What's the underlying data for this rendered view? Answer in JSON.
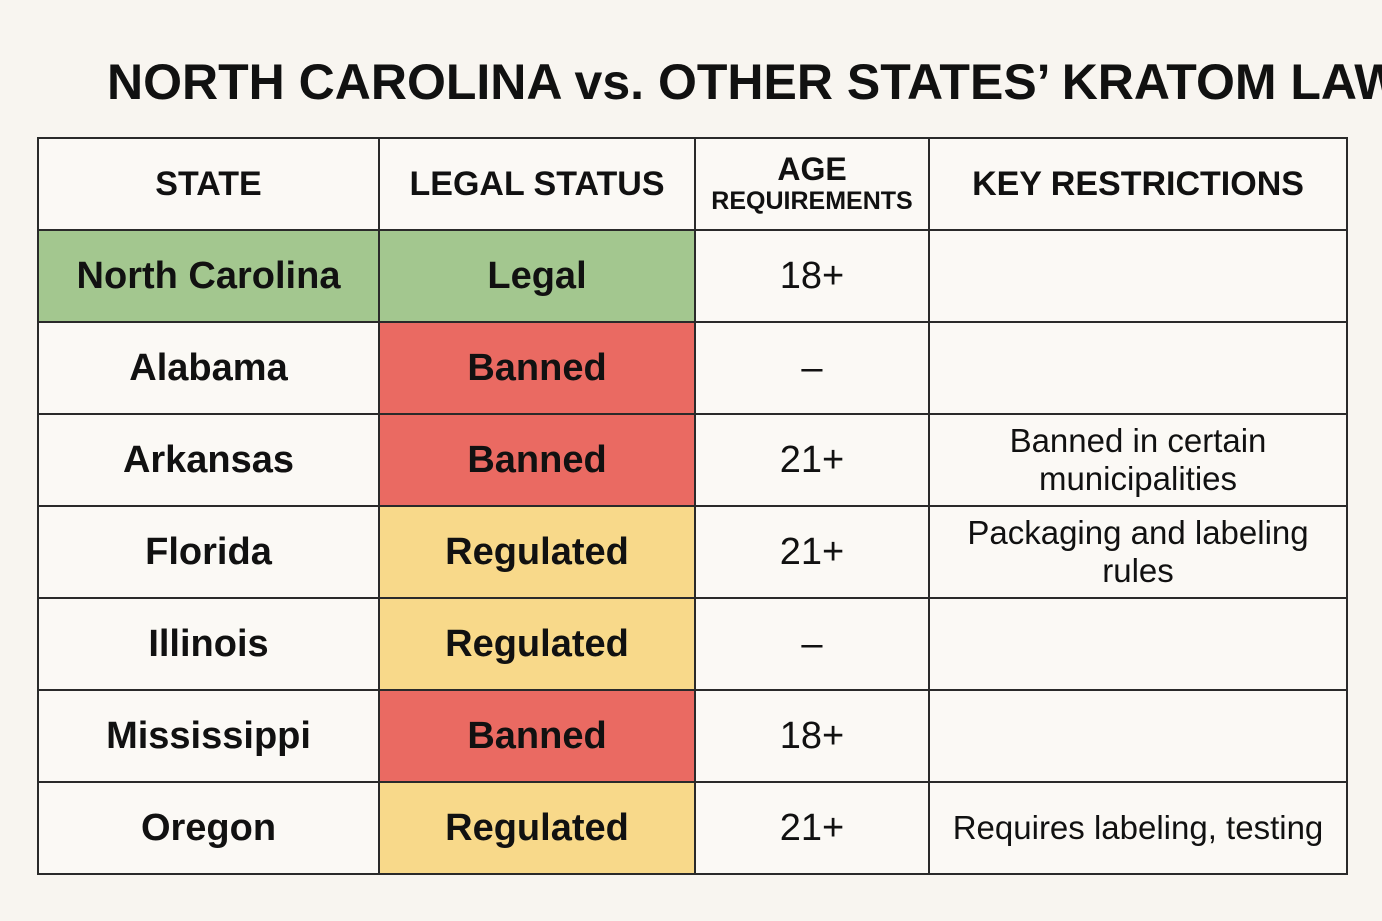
{
  "title": "NORTH CAROLINA vs. OTHER STATES’ KRATOM LAWS",
  "columns": {
    "state": "STATE",
    "status": "LEGAL STATUS",
    "age_line1": "AGE",
    "age_line2": "REQUIREMENTS",
    "restrictions": "KEY RESTRICTIONS"
  },
  "rows": [
    {
      "state": "North Carolina",
      "status": "Legal",
      "status_color": "#a3c78f",
      "age": "18+",
      "restrictions": ""
    },
    {
      "state": "Alabama",
      "status": "Banned",
      "status_color": "#ea6a62",
      "age": "–",
      "restrictions": ""
    },
    {
      "state": "Arkansas",
      "status": "Banned",
      "status_color": "#ea6a62",
      "age": "21+",
      "restrictions": "Banned in certain municipalities"
    },
    {
      "state": "Florida",
      "status": "Regulated",
      "status_color": "#f8d98a",
      "age": "21+",
      "restrictions": "Packaging and labeling rules"
    },
    {
      "state": "Illinois",
      "status": "Regulated",
      "status_color": "#f8d98a",
      "age": "–",
      "restrictions": ""
    },
    {
      "state": "Mississippi",
      "status": "Banned",
      "status_color": "#ea6a62",
      "age": "18+",
      "restrictions": ""
    },
    {
      "state": "Oregon",
      "status": "Regulated",
      "status_color": "#f8d98a",
      "age": "21+",
      "restrictions": "Requires labeling, testing"
    }
  ]
}
